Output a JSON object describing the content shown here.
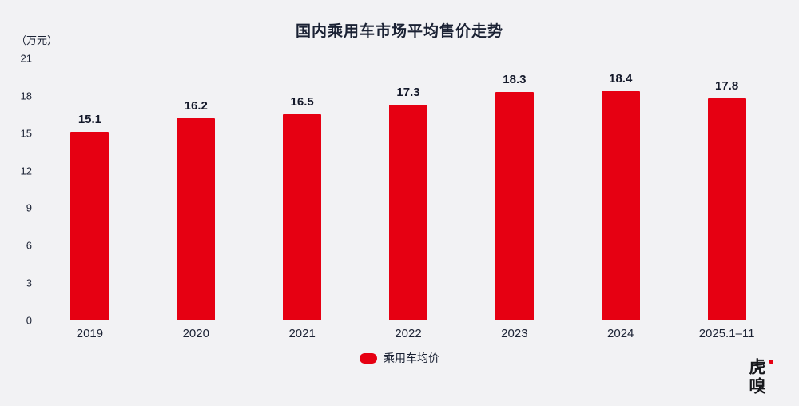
{
  "title": "国内乘用车市场平均售价走势",
  "unit_label": "（万元）",
  "legend": {
    "label": "乘用车均价"
  },
  "logo": {
    "text": "虎嗅"
  },
  "colors": {
    "background": "#f2f2f4",
    "bar": "#e60012",
    "text": "#1b2234"
  },
  "chart_data": {
    "type": "bar",
    "title": "国内乘用车市场平均售价走势",
    "categories": [
      "2019",
      "2020",
      "2021",
      "2022",
      "2023",
      "2024",
      "2025.1–11"
    ],
    "values": [
      15.1,
      16.2,
      16.5,
      17.3,
      18.3,
      18.4,
      17.8
    ],
    "xlabel": "",
    "ylabel": "（万元）",
    "ylim": [
      0,
      21
    ],
    "yticks": [
      0,
      3,
      6,
      9,
      12,
      15,
      18,
      21
    ],
    "grid": false,
    "legend": [
      "乘用车均价"
    ],
    "legend_position": "bottom"
  }
}
